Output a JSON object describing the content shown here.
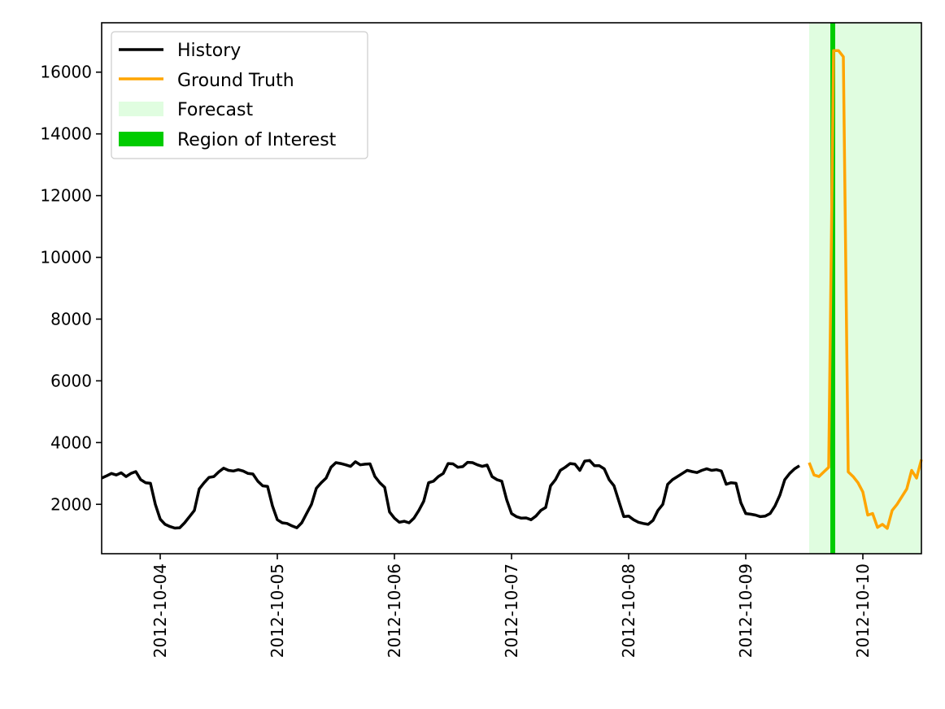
{
  "chart_data": {
    "type": "line",
    "title": "",
    "xlabel": "",
    "ylabel": "",
    "x_axis": {
      "type": "date",
      "range": [
        "2012-10-03 12:00",
        "2012-10-10 12:00"
      ],
      "ticks": [
        "2012-10-04",
        "2012-10-05",
        "2012-10-06",
        "2012-10-07",
        "2012-10-08",
        "2012-10-09",
        "2012-10-10"
      ]
    },
    "y_axis": {
      "range": [
        400,
        17600
      ],
      "ticks": [
        2000,
        4000,
        6000,
        8000,
        10000,
        12000,
        14000,
        16000
      ]
    },
    "grid": false,
    "legend_placement": "top-left",
    "series": [
      {
        "name": "History",
        "color": "#000000",
        "start": "2012-10-03 12:00",
        "step_hours": 1,
        "values": [
          2850,
          2920,
          3000,
          2950,
          3020,
          2900,
          3000,
          3060,
          2800,
          2700,
          2680,
          2000,
          1520,
          1350,
          1280,
          1230,
          1240,
          1400,
          1600,
          1800,
          2500,
          2700,
          2870,
          2900,
          3050,
          3170,
          3100,
          3080,
          3120,
          3080,
          3000,
          2980,
          2750,
          2600,
          2580,
          1950,
          1500,
          1400,
          1380,
          1300,
          1240,
          1400,
          1700,
          2000,
          2520,
          2700,
          2850,
          3200,
          3350,
          3320,
          3280,
          3230,
          3380,
          3280,
          3300,
          3310,
          2900,
          2700,
          2550,
          1750,
          1550,
          1420,
          1450,
          1400,
          1550,
          1800,
          2100,
          2700,
          2750,
          2900,
          3000,
          3320,
          3310,
          3200,
          3220,
          3360,
          3350,
          3280,
          3230,
          3270,
          2900,
          2800,
          2750,
          2150,
          1700,
          1600,
          1550,
          1560,
          1500,
          1620,
          1800,
          1900,
          2600,
          2800,
          3100,
          3200,
          3320,
          3300,
          3100,
          3400,
          3420,
          3250,
          3250,
          3150,
          2800,
          2600,
          2100,
          1600,
          1620,
          1500,
          1420,
          1380,
          1350,
          1480,
          1800,
          2000,
          2650,
          2800,
          2900,
          3000,
          3100,
          3060,
          3030,
          3100,
          3150,
          3100,
          3120,
          3080,
          2650,
          2700,
          2680,
          2050,
          1700,
          1680,
          1650,
          1600,
          1620,
          1700,
          1950,
          2300,
          2800,
          3000,
          3150,
          3250
        ]
      },
      {
        "name": "Ground Truth",
        "color": "#ffa500",
        "start": "2012-10-09 13:00",
        "step_hours": 1,
        "values": [
          3350,
          2950,
          2900,
          3050,
          3200,
          16700,
          16700,
          16500,
          3050,
          2900,
          2700,
          2400,
          1650,
          1700,
          1250,
          1350,
          1220,
          1800,
          2000,
          2250,
          2500,
          3100,
          2850,
          3450
        ]
      }
    ],
    "forecast_region": {
      "name": "Forecast",
      "color": "#e0fde0",
      "start": "2012-10-09 13:00",
      "end": "2012-10-10 12:00"
    },
    "region_of_interest": {
      "name": "Region of Interest",
      "color": "#00cc00",
      "start": "2012-10-09 17:00",
      "end": "2012-10-09 18:00"
    }
  }
}
